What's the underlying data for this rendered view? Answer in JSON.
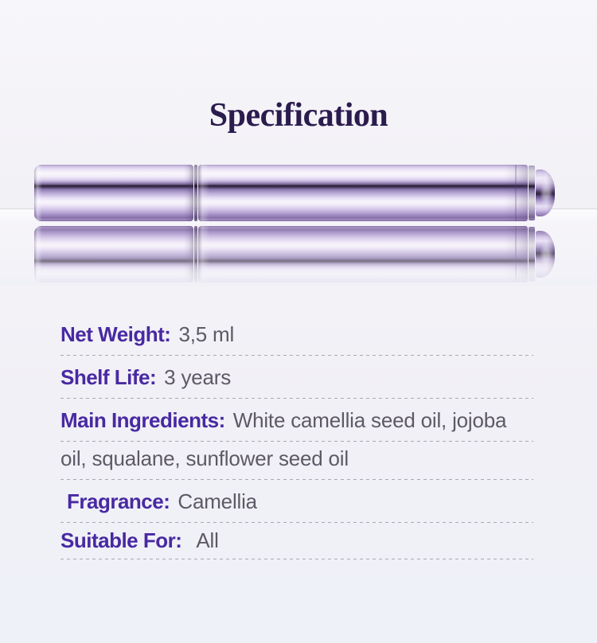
{
  "header": {
    "title": "Specification",
    "title_color": "#2b1c4e"
  },
  "product": {
    "photo_alt": "lavender metallic cosmetic pen bottle lying horizontally on a reflective white surface with mirror reflection",
    "bottle_accent_color": "#b7a6d3",
    "bottle_highlight_color": "#f9f6fc",
    "bottle_shadow_stripe_color": "#231a2f"
  },
  "specs": {
    "label_color": "#4829a2",
    "value_color": "#5e5966",
    "divider_color": "#aaa8b2",
    "rows": [
      {
        "label": "Net Weight:",
        "value": "3,5 ml"
      },
      {
        "label": "Shelf Life:",
        "value": "3 years"
      },
      {
        "label": "Main Ingredients:",
        "value": "White camellia seed oil, jojoba oil, squalane, sunflower seed oil"
      },
      {
        "label": "Fragrance:",
        "value": "Camellia"
      },
      {
        "label": "Suitable For:",
        "value": "All"
      }
    ],
    "display_lines": [
      {
        "label": "Net Weight:",
        "text": "3,5 ml"
      },
      {
        "label": "Shelf Life:",
        "text": "3 years"
      },
      {
        "label": "Main Ingredients:",
        "text": "White camellia seed oil, jojoba"
      },
      {
        "label": "",
        "text": "oil, squalane, sunflower seed oil"
      },
      {
        "label": "Fragrance:",
        "text": "Camellia"
      },
      {
        "label": "Suitable For:",
        "text": "All"
      }
    ]
  }
}
